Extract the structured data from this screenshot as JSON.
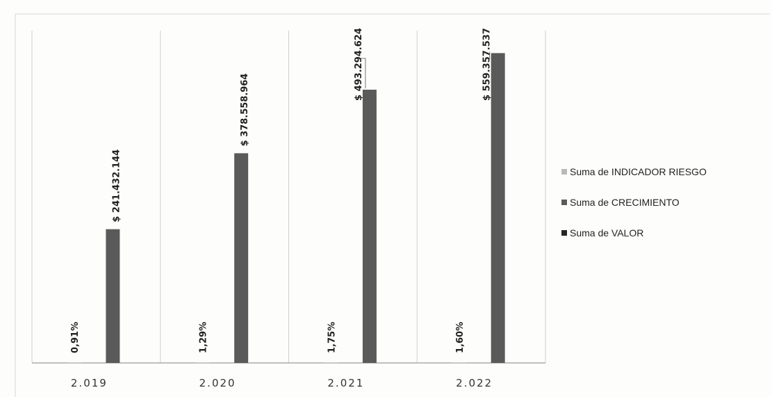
{
  "chart_data": {
    "type": "bar",
    "categories": [
      "2.019",
      "2.020",
      "2.021",
      "2.022"
    ],
    "series": [
      {
        "name": "Suma de INDICADOR RIESGO",
        "values": [
          0.0091,
          0.0129,
          0.0175,
          0.016
        ],
        "labels": [
          "0,91%",
          "1,29%",
          "1,75%",
          "1,60%"
        ],
        "color": "#b9b9b9"
      },
      {
        "name": "Suma de CRECIMIENTO",
        "values": [
          241432144,
          378558964,
          493294624,
          559357537
        ],
        "labels": [
          "$ 241.432.144",
          "$ 378.558.964",
          "$ 493.294.624",
          "$ 559.357.537"
        ],
        "color": "#5a5a5a"
      },
      {
        "name": "Suma de VALOR",
        "values": [
          null,
          null,
          null,
          null
        ],
        "labels": [],
        "color": "#262626"
      }
    ],
    "ylim": [
      0,
      600000000
    ],
    "legend_position": "right",
    "grid": "vertical-category-separators"
  }
}
